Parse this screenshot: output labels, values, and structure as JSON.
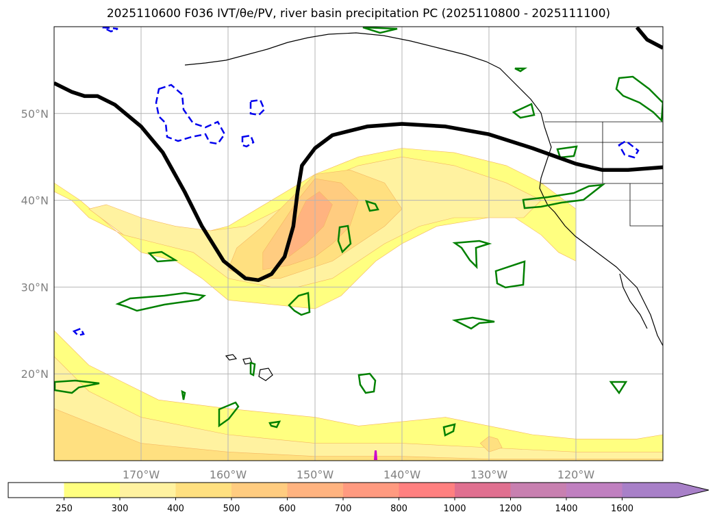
{
  "title": "2025110600 F036 IVT/θe/PV, river basin precipitation PC (2025110800 - 2025111100)",
  "chart_data": {
    "type": "map-contour",
    "title": "2025110600 F036 IVT/θe/PV, river basin precipitation PC (2025110800 - 2025111100)",
    "lon_range": [
      180,
      110
    ],
    "lat_range": [
      10,
      60
    ],
    "x_ticks": [
      {
        "lon": 170,
        "label": "170°W"
      },
      {
        "lon": 160,
        "label": "160°W"
      },
      {
        "lon": 150,
        "label": "150°W"
      },
      {
        "lon": 140,
        "label": "140°W"
      },
      {
        "lon": 130,
        "label": "130°W"
      },
      {
        "lon": 120,
        "label": "120°W"
      }
    ],
    "y_ticks": [
      {
        "lat": 20,
        "label": "20°N"
      },
      {
        "lat": 30,
        "label": "30°N"
      },
      {
        "lat": 40,
        "label": "40°N"
      },
      {
        "lat": 50,
        "label": "50°N"
      }
    ],
    "grid": true,
    "colorbar": {
      "levels": [
        "250",
        "300",
        "400",
        "500",
        "600",
        "700",
        "800",
        "1000",
        "1200",
        "1400",
        "1600"
      ],
      "colors": [
        "#ffffff",
        "#ffff80",
        "#fff2a0",
        "#ffe080",
        "#ffcc80",
        "#ffb380",
        "#ff9a80",
        "#ff8080",
        "#e07090",
        "#c880b0",
        "#c080c0",
        "#a880c8"
      ],
      "extend": "max"
    },
    "pv_line": [
      [
        180,
        53.5
      ],
      [
        178,
        52.5
      ],
      [
        176.5,
        52
      ],
      [
        175,
        52
      ],
      [
        173,
        51
      ],
      [
        170,
        48.5
      ],
      [
        167.5,
        45.5
      ],
      [
        165,
        41
      ],
      [
        163,
        37
      ],
      [
        160.5,
        33
      ],
      [
        158,
        31
      ],
      [
        156.5,
        30.8
      ],
      [
        155,
        31.5
      ],
      [
        153.5,
        33.5
      ],
      [
        152.5,
        37
      ],
      [
        152,
        41
      ],
      [
        151.5,
        44
      ],
      [
        150,
        46
      ],
      [
        148,
        47.5
      ],
      [
        144,
        48.5
      ],
      [
        140,
        48.8
      ],
      [
        135,
        48.5
      ],
      [
        130,
        47.6
      ],
      [
        125,
        46
      ],
      [
        120,
        44.2
      ],
      [
        117,
        43.5
      ],
      [
        114,
        43.5
      ],
      [
        110,
        43.8
      ]
    ],
    "ivt_fields": [
      {
        "level": "250",
        "polygon": [
          [
            180,
            42
          ],
          [
            177,
            40
          ],
          [
            170,
            34
          ],
          [
            166,
            33
          ],
          [
            163,
            31
          ],
          [
            160,
            28.5
          ],
          [
            155,
            28
          ],
          [
            150,
            27.5
          ],
          [
            147,
            29
          ],
          [
            145,
            31
          ],
          [
            143,
            33
          ],
          [
            140,
            35
          ],
          [
            136,
            37
          ],
          [
            130,
            38
          ],
          [
            127,
            38
          ],
          [
            124,
            36
          ],
          [
            122,
            34
          ],
          [
            120,
            33
          ],
          [
            120,
            36
          ],
          [
            120,
            39
          ],
          [
            124,
            42
          ],
          [
            128,
            44
          ],
          [
            134,
            45.5
          ],
          [
            140,
            46
          ],
          [
            145,
            45
          ],
          [
            150,
            43
          ],
          [
            155,
            40
          ],
          [
            160,
            37
          ],
          [
            164,
            36
          ],
          [
            168,
            36
          ],
          [
            172,
            36
          ],
          [
            176,
            38
          ],
          [
            178,
            40
          ],
          [
            180,
            41
          ]
        ]
      },
      {
        "level": "300",
        "polygon": [
          [
            176,
            39
          ],
          [
            172,
            36
          ],
          [
            168,
            35
          ],
          [
            164,
            34
          ],
          [
            160,
            31
          ],
          [
            155,
            30
          ],
          [
            152,
            30
          ],
          [
            148,
            31
          ],
          [
            145,
            33
          ],
          [
            142,
            35
          ],
          [
            138,
            37
          ],
          [
            134,
            38
          ],
          [
            130,
            38
          ],
          [
            126,
            38
          ],
          [
            124,
            40
          ],
          [
            128,
            42
          ],
          [
            134,
            44
          ],
          [
            140,
            45
          ],
          [
            145,
            44
          ],
          [
            150,
            42
          ],
          [
            154,
            39
          ],
          [
            158,
            37
          ],
          [
            162,
            36.5
          ],
          [
            166,
            37
          ],
          [
            170,
            38
          ],
          [
            174,
            39.5
          ]
        ]
      },
      {
        "level": "400",
        "polygon": [
          [
            160,
            32
          ],
          [
            157,
            31
          ],
          [
            154,
            31
          ],
          [
            151,
            32
          ],
          [
            148,
            33
          ],
          [
            145,
            35
          ],
          [
            142,
            37
          ],
          [
            140,
            39
          ],
          [
            142,
            42
          ],
          [
            146,
            43.5
          ],
          [
            150,
            43
          ],
          [
            153,
            40
          ],
          [
            156,
            37
          ],
          [
            159,
            34.5
          ]
        ]
      },
      {
        "level": "500",
        "polygon": [
          [
            156,
            32
          ],
          [
            153,
            32.5
          ],
          [
            150,
            33.5
          ],
          [
            148,
            35
          ],
          [
            146,
            37
          ],
          [
            145,
            40
          ],
          [
            147,
            42
          ],
          [
            150,
            42.5
          ],
          [
            152,
            40
          ],
          [
            154,
            37
          ],
          [
            156,
            34
          ]
        ]
      },
      {
        "level": "600",
        "polygon": [
          [
            153,
            33.5
          ],
          [
            151,
            35
          ],
          [
            149,
            37
          ],
          [
            148,
            39.5
          ],
          [
            149.5,
            41
          ],
          [
            151,
            40
          ],
          [
            152,
            38
          ],
          [
            153,
            35.5
          ]
        ]
      },
      {
        "level": "250",
        "polygon": [
          [
            180,
            25
          ],
          [
            176,
            21
          ],
          [
            172,
            19
          ],
          [
            168,
            17
          ],
          [
            160,
            16
          ],
          [
            150,
            15
          ],
          [
            145,
            14
          ],
          [
            140,
            14.5
          ],
          [
            135,
            15
          ],
          [
            130,
            14
          ],
          [
            125,
            13
          ],
          [
            120,
            12.5
          ],
          [
            116,
            12.5
          ],
          [
            113,
            12.5
          ],
          [
            110,
            13
          ],
          [
            110,
            10
          ],
          [
            180,
            10
          ]
        ]
      },
      {
        "level": "300",
        "polygon": [
          [
            180,
            22
          ],
          [
            176,
            18
          ],
          [
            170,
            15
          ],
          [
            160,
            13
          ],
          [
            150,
            12
          ],
          [
            140,
            12
          ],
          [
            130,
            11.5
          ],
          [
            120,
            11
          ],
          [
            110,
            11
          ],
          [
            110,
            10
          ],
          [
            180,
            10
          ]
        ]
      },
      {
        "level": "400",
        "polygon": [
          [
            180,
            16
          ],
          [
            170,
            12
          ],
          [
            160,
            11
          ],
          [
            150,
            10.5
          ],
          [
            140,
            10.5
          ],
          [
            130,
            10.2
          ],
          [
            120,
            10.2
          ],
          [
            110,
            10.2
          ],
          [
            110,
            10
          ],
          [
            180,
            10
          ]
        ]
      },
      {
        "level": "400",
        "polygon": [
          [
            131,
            12
          ],
          [
            130,
            12.8
          ],
          [
            129,
            12.5
          ],
          [
            128.5,
            11.5
          ],
          [
            130,
            11
          ]
        ]
      }
    ]
  }
}
